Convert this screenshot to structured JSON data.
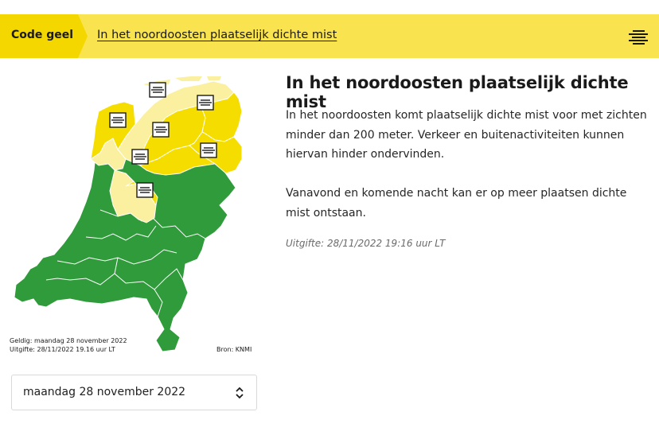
{
  "banner": {
    "code_label": "Code geel",
    "title": "In het noordoosten plaatselijk dichte mist",
    "menu_icon": "fog-lines-icon",
    "color": "#f9e44f",
    "code_color": "#f5d700"
  },
  "map": {
    "valid_text": "Geldig: maandag 28 november 2022",
    "issued_text": "Uitgifte: 28/11/2022 19.16 uur LT",
    "source_text": "Bron: KNMI",
    "colors": {
      "green": "#2f9b3a",
      "yellow": "#f5dd00",
      "light_yellow": "#faf0a0"
    },
    "fog_icon": "fog-icon"
  },
  "date_select": {
    "value": "maandag 28 november 2022",
    "icon": "chevron-up-down-icon"
  },
  "article": {
    "heading": "In het noordoosten plaatselijk dichte mist",
    "paragraph1": "In het noordoosten komt plaatselijk dichte mist voor met zichten minder dan 200 meter. Verkeer en buitenactiviteiten kunnen hiervan hinder ondervinden.",
    "paragraph2": "Vanavond en komende nacht kan er op meer plaatsen dichte mist ontstaan.",
    "issued": "Uitgifte: 28/11/2022 19:16 uur LT"
  }
}
